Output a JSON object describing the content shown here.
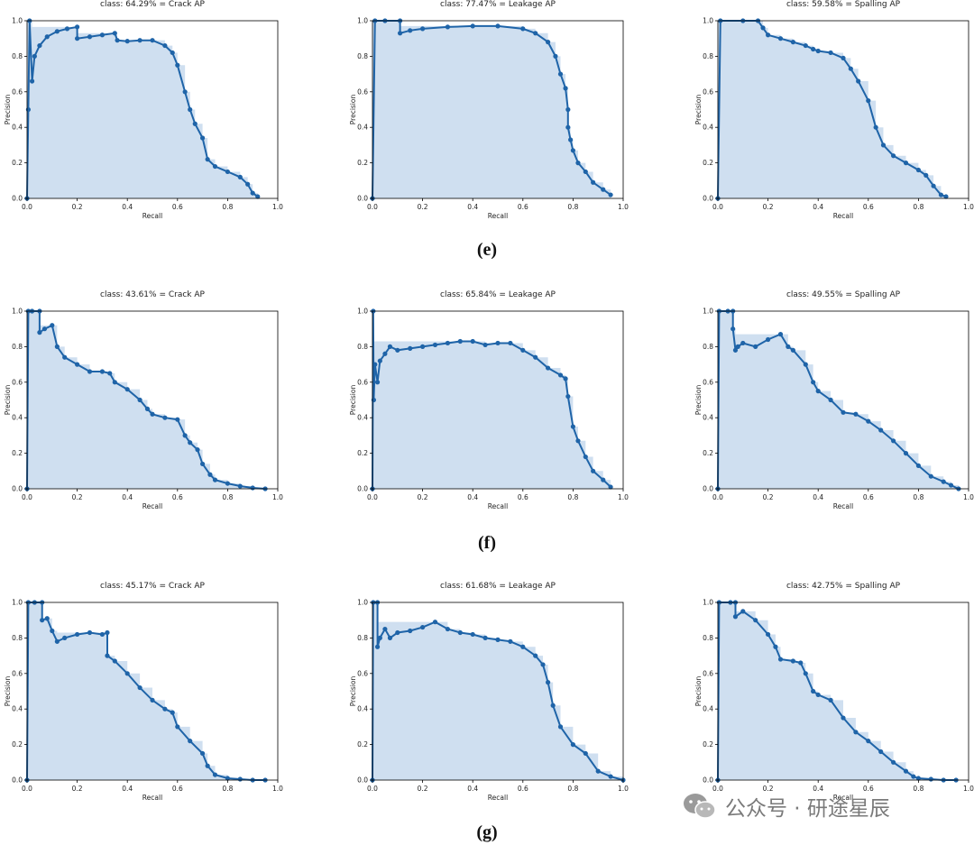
{
  "panel_labels": [
    "(e)",
    "(f)",
    "(g)"
  ],
  "watermark_text": "公众号 · 研途星辰",
  "colors": {
    "line": "#1f64a8",
    "fill": "#cfdff0",
    "axis": "#000000",
    "text": "#222222"
  },
  "chart_data": [
    {
      "type": "area",
      "title": "class: 64.29% = Crack AP",
      "xlabel": "Recall",
      "ylabel": "Precision",
      "xlim": [
        0,
        1
      ],
      "ylim": [
        0,
        1
      ],
      "xticks": [
        "0.0",
        "0.2",
        "0.4",
        "0.6",
        "0.8",
        "1.0"
      ],
      "yticks": [
        "0.0",
        "0.2",
        "0.4",
        "0.6",
        "0.8",
        "1.0"
      ],
      "x": [
        0,
        0.005,
        0.01,
        0.02,
        0.03,
        0.05,
        0.08,
        0.12,
        0.16,
        0.2,
        0.2,
        0.25,
        0.3,
        0.35,
        0.36,
        0.4,
        0.45,
        0.5,
        0.55,
        0.58,
        0.6,
        0.63,
        0.65,
        0.67,
        0.7,
        0.72,
        0.75,
        0.8,
        0.85,
        0.88,
        0.9,
        0.92
      ],
      "y": [
        0,
        0.5,
        1.0,
        0.66,
        0.8,
        0.86,
        0.91,
        0.94,
        0.955,
        0.965,
        0.9,
        0.91,
        0.92,
        0.93,
        0.89,
        0.885,
        0.89,
        0.89,
        0.86,
        0.82,
        0.75,
        0.6,
        0.5,
        0.42,
        0.34,
        0.22,
        0.18,
        0.15,
        0.12,
        0.08,
        0.03,
        0.01
      ]
    },
    {
      "type": "area",
      "title": "class: 77.47% = Leakage AP",
      "xlabel": "Recall",
      "ylabel": "Precision",
      "xlim": [
        0,
        1
      ],
      "ylim": [
        0,
        1
      ],
      "xticks": [
        "0.0",
        "0.2",
        "0.4",
        "0.6",
        "0.8",
        "1.0"
      ],
      "yticks": [
        "0.0",
        "0.2",
        "0.4",
        "0.6",
        "0.8",
        "1.0"
      ],
      "x": [
        0,
        0.01,
        0.05,
        0.11,
        0.11,
        0.15,
        0.2,
        0.3,
        0.4,
        0.5,
        0.6,
        0.65,
        0.7,
        0.73,
        0.75,
        0.77,
        0.78,
        0.78,
        0.79,
        0.8,
        0.82,
        0.85,
        0.88,
        0.92,
        0.95
      ],
      "y": [
        0,
        1.0,
        1.0,
        1.0,
        0.93,
        0.945,
        0.955,
        0.965,
        0.97,
        0.97,
        0.955,
        0.93,
        0.88,
        0.8,
        0.7,
        0.62,
        0.5,
        0.4,
        0.33,
        0.27,
        0.2,
        0.15,
        0.09,
        0.05,
        0.02
      ]
    },
    {
      "type": "area",
      "title": "class: 59.58% = Spalling AP",
      "xlabel": "Recall",
      "ylabel": "Precision",
      "xlim": [
        0,
        1
      ],
      "ylim": [
        0,
        1
      ],
      "xticks": [
        "0.0",
        "0.2",
        "0.4",
        "0.6",
        "0.8",
        "1.0"
      ],
      "yticks": [
        "0.0",
        "0.2",
        "0.4",
        "0.6",
        "0.8",
        "1.0"
      ],
      "x": [
        0,
        0.01,
        0.1,
        0.16,
        0.18,
        0.2,
        0.25,
        0.3,
        0.35,
        0.38,
        0.4,
        0.45,
        0.5,
        0.53,
        0.56,
        0.6,
        0.63,
        0.66,
        0.7,
        0.75,
        0.8,
        0.83,
        0.86,
        0.89,
        0.91
      ],
      "y": [
        0,
        1.0,
        1.0,
        1.0,
        0.96,
        0.92,
        0.9,
        0.88,
        0.86,
        0.84,
        0.83,
        0.82,
        0.79,
        0.73,
        0.66,
        0.55,
        0.4,
        0.3,
        0.24,
        0.2,
        0.16,
        0.13,
        0.07,
        0.02,
        0.01
      ]
    },
    {
      "type": "area",
      "title": "class: 43.61% = Crack AP",
      "xlabel": "Recall",
      "ylabel": "Precision",
      "xlim": [
        0,
        1
      ],
      "ylim": [
        0,
        1
      ],
      "xticks": [
        "0.0",
        "0.2",
        "0.4",
        "0.6",
        "0.8",
        "1.0"
      ],
      "yticks": [
        "0.0",
        "0.2",
        "0.4",
        "0.6",
        "0.8",
        "1.0"
      ],
      "x": [
        0,
        0.005,
        0.02,
        0.05,
        0.05,
        0.07,
        0.1,
        0.12,
        0.15,
        0.2,
        0.25,
        0.3,
        0.33,
        0.35,
        0.4,
        0.45,
        0.48,
        0.5,
        0.55,
        0.6,
        0.63,
        0.65,
        0.68,
        0.7,
        0.73,
        0.75,
        0.8,
        0.85,
        0.9,
        0.95
      ],
      "y": [
        0,
        1.0,
        1.0,
        1.0,
        0.88,
        0.9,
        0.92,
        0.8,
        0.74,
        0.7,
        0.66,
        0.66,
        0.65,
        0.6,
        0.56,
        0.5,
        0.45,
        0.42,
        0.4,
        0.39,
        0.3,
        0.26,
        0.22,
        0.14,
        0.08,
        0.05,
        0.03,
        0.015,
        0.005,
        0
      ]
    },
    {
      "type": "area",
      "title": "class: 65.84% = Leakage AP",
      "xlabel": "Recall",
      "ylabel": "Precision",
      "xlim": [
        0,
        1
      ],
      "ylim": [
        0,
        1
      ],
      "xticks": [
        "0.0",
        "0.2",
        "0.4",
        "0.6",
        "0.8",
        "1.0"
      ],
      "yticks": [
        "0.0",
        "0.2",
        "0.4",
        "0.6",
        "0.8",
        "1.0"
      ],
      "x": [
        0,
        0.003,
        0.005,
        0.01,
        0.02,
        0.03,
        0.05,
        0.07,
        0.1,
        0.15,
        0.2,
        0.25,
        0.3,
        0.35,
        0.4,
        0.45,
        0.5,
        0.55,
        0.6,
        0.65,
        0.7,
        0.75,
        0.77,
        0.78,
        0.8,
        0.82,
        0.85,
        0.88,
        0.92,
        0.95
      ],
      "y": [
        0,
        1.0,
        0.5,
        0.7,
        0.6,
        0.72,
        0.76,
        0.8,
        0.78,
        0.79,
        0.8,
        0.81,
        0.82,
        0.83,
        0.83,
        0.81,
        0.82,
        0.82,
        0.78,
        0.74,
        0.68,
        0.64,
        0.62,
        0.52,
        0.35,
        0.27,
        0.18,
        0.1,
        0.05,
        0.01
      ]
    },
    {
      "type": "area",
      "title": "class: 49.55% = Spalling AP",
      "xlabel": "Recall",
      "ylabel": "Precision",
      "xlim": [
        0,
        1
      ],
      "ylim": [
        0,
        1
      ],
      "xticks": [
        "0.0",
        "0.2",
        "0.4",
        "0.6",
        "0.8",
        "1.0"
      ],
      "yticks": [
        "0.0",
        "0.2",
        "0.4",
        "0.6",
        "0.8",
        "1.0"
      ],
      "x": [
        0,
        0.005,
        0.04,
        0.06,
        0.06,
        0.07,
        0.08,
        0.1,
        0.15,
        0.2,
        0.25,
        0.28,
        0.3,
        0.35,
        0.38,
        0.4,
        0.45,
        0.5,
        0.55,
        0.6,
        0.65,
        0.7,
        0.75,
        0.8,
        0.85,
        0.9,
        0.93,
        0.96
      ],
      "y": [
        0,
        1.0,
        1.0,
        1.0,
        0.9,
        0.78,
        0.8,
        0.82,
        0.8,
        0.84,
        0.87,
        0.8,
        0.78,
        0.7,
        0.6,
        0.55,
        0.5,
        0.43,
        0.42,
        0.38,
        0.33,
        0.27,
        0.2,
        0.13,
        0.07,
        0.04,
        0.02,
        0
      ]
    },
    {
      "type": "area",
      "title": "class: 45.17% = Crack AP",
      "xlabel": "Recall",
      "ylabel": "Precision",
      "xlim": [
        0,
        1
      ],
      "ylim": [
        0,
        1
      ],
      "xticks": [
        "0.0",
        "0.2",
        "0.4",
        "0.6",
        "0.8",
        "1.0"
      ],
      "yticks": [
        "0.0",
        "0.2",
        "0.4",
        "0.6",
        "0.8",
        "1.0"
      ],
      "x": [
        0,
        0.005,
        0.03,
        0.06,
        0.06,
        0.08,
        0.1,
        0.12,
        0.15,
        0.2,
        0.25,
        0.3,
        0.32,
        0.32,
        0.35,
        0.4,
        0.45,
        0.5,
        0.55,
        0.58,
        0.6,
        0.65,
        0.7,
        0.72,
        0.75,
        0.8,
        0.85,
        0.9,
        0.95
      ],
      "y": [
        0,
        1.0,
        1.0,
        1.0,
        0.9,
        0.91,
        0.84,
        0.78,
        0.8,
        0.82,
        0.83,
        0.82,
        0.83,
        0.7,
        0.67,
        0.6,
        0.52,
        0.45,
        0.4,
        0.38,
        0.3,
        0.22,
        0.15,
        0.08,
        0.03,
        0.01,
        0.005,
        0,
        0
      ]
    },
    {
      "type": "area",
      "title": "class: 61.68% = Leakage AP",
      "xlabel": "Recall",
      "ylabel": "Precision",
      "xlim": [
        0,
        1
      ],
      "ylim": [
        0,
        1
      ],
      "xticks": [
        "0.0",
        "0.2",
        "0.4",
        "0.6",
        "0.8",
        "1.0"
      ],
      "yticks": [
        "0.0",
        "0.2",
        "0.4",
        "0.6",
        "0.8",
        "1.0"
      ],
      "x": [
        0,
        0.003,
        0.02,
        0.02,
        0.03,
        0.05,
        0.07,
        0.1,
        0.15,
        0.2,
        0.25,
        0.3,
        0.35,
        0.4,
        0.45,
        0.5,
        0.55,
        0.6,
        0.65,
        0.68,
        0.7,
        0.72,
        0.75,
        0.8,
        0.85,
        0.9,
        0.95,
        1.0
      ],
      "y": [
        0,
        1.0,
        1.0,
        0.75,
        0.8,
        0.85,
        0.8,
        0.83,
        0.84,
        0.86,
        0.89,
        0.85,
        0.83,
        0.82,
        0.8,
        0.79,
        0.78,
        0.75,
        0.7,
        0.65,
        0.55,
        0.42,
        0.3,
        0.2,
        0.15,
        0.05,
        0.02,
        0
      ]
    },
    {
      "type": "area",
      "title": "class: 42.75% = Spalling AP",
      "xlabel": "Recall",
      "ylabel": "Precision",
      "xlim": [
        0,
        1
      ],
      "ylim": [
        0,
        1
      ],
      "xticks": [
        "0.0",
        "0.2",
        "0.4",
        "0.6",
        "0.8",
        "1.0"
      ],
      "yticks": [
        "0.0",
        "0.2",
        "0.4",
        "0.6",
        "0.8",
        "1.0"
      ],
      "x": [
        0,
        0.005,
        0.05,
        0.07,
        0.07,
        0.1,
        0.15,
        0.2,
        0.23,
        0.25,
        0.3,
        0.33,
        0.35,
        0.38,
        0.4,
        0.45,
        0.5,
        0.55,
        0.6,
        0.65,
        0.7,
        0.75,
        0.78,
        0.8,
        0.85,
        0.9,
        0.95
      ],
      "y": [
        0,
        1.0,
        1.0,
        1.0,
        0.92,
        0.95,
        0.9,
        0.82,
        0.75,
        0.68,
        0.67,
        0.66,
        0.6,
        0.5,
        0.48,
        0.45,
        0.35,
        0.27,
        0.22,
        0.16,
        0.1,
        0.05,
        0.02,
        0.01,
        0.005,
        0,
        0
      ]
    }
  ]
}
